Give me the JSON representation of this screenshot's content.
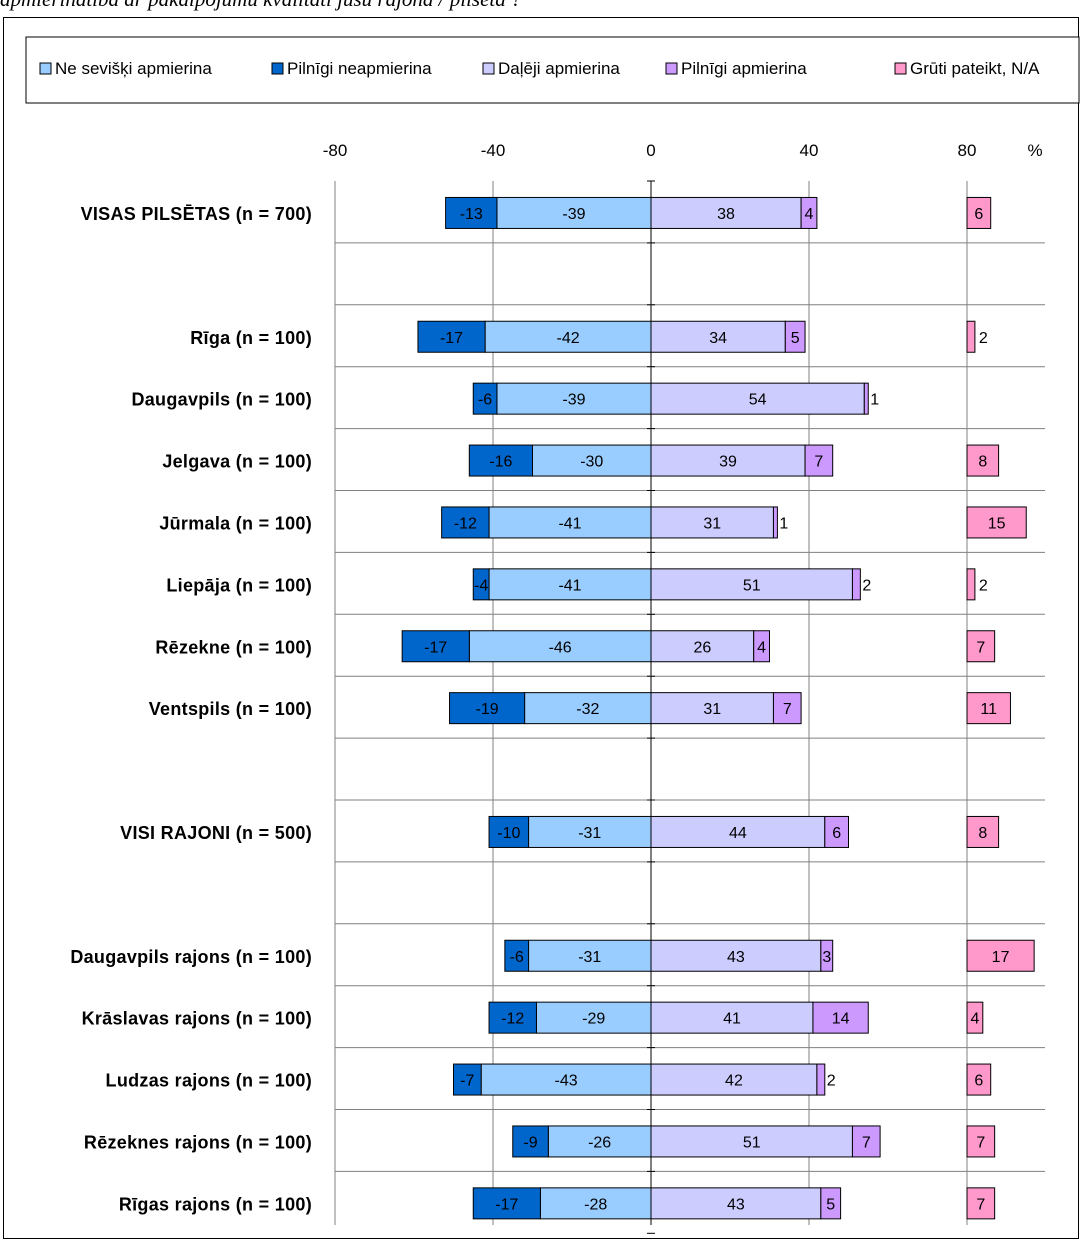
{
  "caption": "apmierinātība ar pakalpojumu kvalitāti jūsu rajonā / pilsētā ?",
  "colors": {
    "not_very": "#99ccff",
    "totally_not": "#0066cc",
    "partly": "#ccccff",
    "totally": "#cc99ff",
    "hard_to_say": "#ff99cc",
    "grid": "#808080",
    "border": "#000000"
  },
  "chart_data": {
    "type": "bar",
    "orientation": "horizontal",
    "stacked": "diverging",
    "title": "",
    "xlabel": "",
    "ylabel": "",
    "unit_label": "%",
    "xlim": [
      -80,
      80
    ],
    "xticks": [
      "-80",
      "-40",
      "0",
      "40",
      "80"
    ],
    "grid": true,
    "legend_position": "top",
    "legend": [
      {
        "key": "not_very",
        "label": "Ne sevišķi apmierina"
      },
      {
        "key": "totally_not",
        "label": "Pilnīgi neapmierina"
      },
      {
        "key": "partly",
        "label": "Daļēji apmierina"
      },
      {
        "key": "totally",
        "label": "Pilnīgi apmierina"
      },
      {
        "key": "hard_to_say",
        "label": "Grūti pateikt, N/A"
      }
    ],
    "categories": [
      "VISAS PILSĒTAS (n = 700)",
      "",
      "Rīga (n = 100)",
      "Daugavpils (n = 100)",
      "Jelgava (n = 100)",
      "Jūrmala (n = 100)",
      "Liepāja (n = 100)",
      "Rēzekne (n = 100)",
      "Ventspils (n = 100)",
      "",
      "VISI RAJONI (n = 500)",
      "",
      "Daugavpils rajons (n = 100)",
      "Krāslavas rajons (n = 100)",
      "Ludzas rajons (n = 100)",
      "Rēzeknes rajons (n = 100)",
      "Rīgas rajons (n = 100)"
    ],
    "series": [
      {
        "key": "not_very",
        "name": "Ne sevišķi apmierina",
        "values": [
          -39,
          null,
          -42,
          -39,
          -30,
          -41,
          -41,
          -46,
          -32,
          null,
          -31,
          null,
          -31,
          -29,
          -43,
          -26,
          -28
        ]
      },
      {
        "key": "totally_not",
        "name": "Pilnīgi neapmierina",
        "values": [
          -13,
          null,
          -17,
          -6,
          -16,
          -12,
          -4,
          -17,
          -19,
          null,
          -10,
          null,
          -6,
          -12,
          -7,
          -9,
          -17
        ]
      },
      {
        "key": "partly",
        "name": "Daļēji apmierina",
        "values": [
          38,
          null,
          34,
          54,
          39,
          31,
          51,
          26,
          31,
          null,
          44,
          null,
          43,
          41,
          42,
          51,
          43
        ]
      },
      {
        "key": "totally",
        "name": "Pilnīgi apmierina",
        "values": [
          4,
          null,
          5,
          1,
          7,
          1,
          2,
          4,
          7,
          null,
          6,
          null,
          3,
          14,
          2,
          7,
          5
        ]
      },
      {
        "key": "hard_to_say",
        "name": "Grūti pateikt, N/A",
        "values": [
          6,
          null,
          2,
          null,
          8,
          15,
          2,
          7,
          11,
          null,
          8,
          null,
          17,
          4,
          6,
          7,
          7
        ]
      }
    ]
  }
}
